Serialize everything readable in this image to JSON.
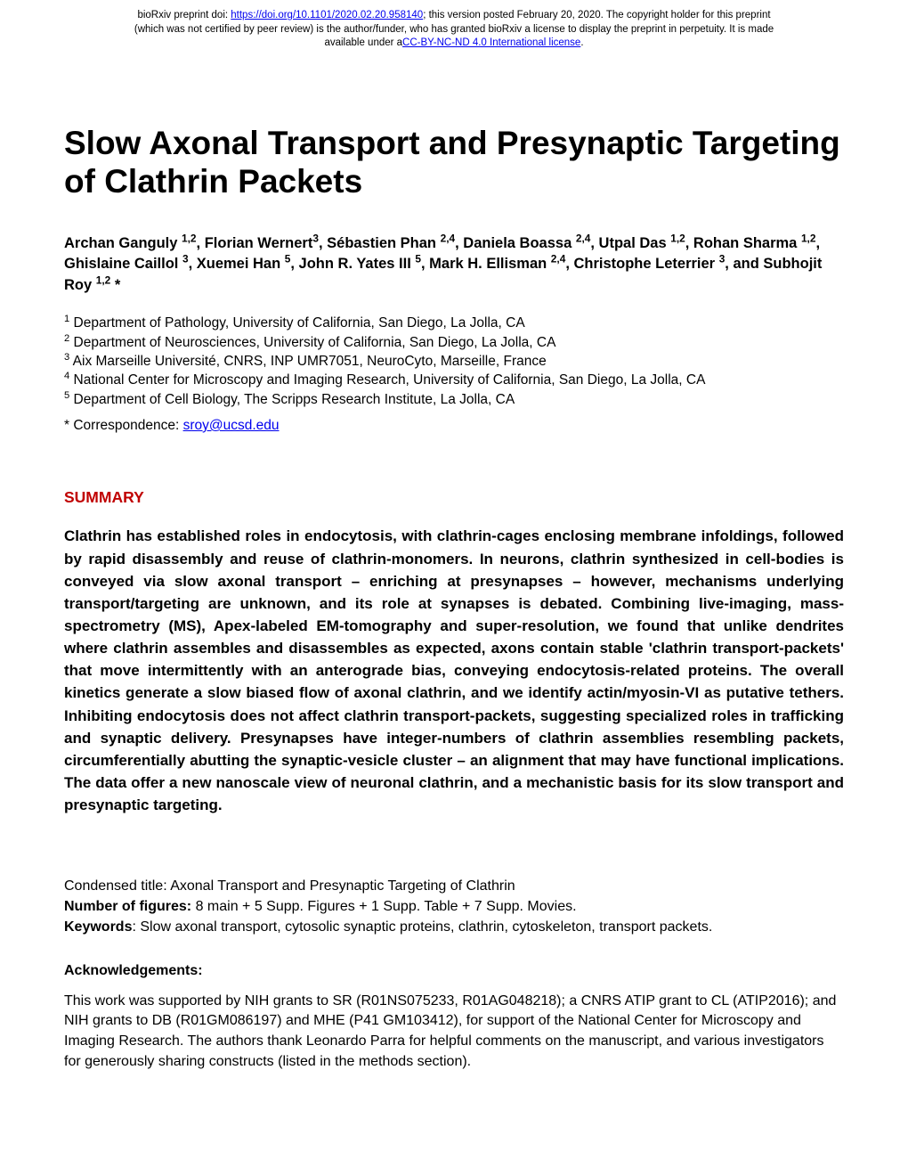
{
  "banner": {
    "line1_pre": "bioRxiv preprint doi: ",
    "doi_text": "https://doi.org/10.1101/2020.02.20.958140",
    "line1_post": "; this version posted February 20, 2020. The copyright holder for this preprint",
    "line2": "(which was not certified by peer review) is the author/funder, who has granted bioRxiv a license to display the preprint in perpetuity. It is made",
    "line3_pre": "available under a",
    "license_text": "CC-BY-NC-ND 4.0 International license",
    "line3_post": "."
  },
  "title": "Slow Axonal Transport and Presynaptic Targeting of Clathrin Packets",
  "authors_html_parts": [
    {
      "t": "Archan Ganguly ",
      "s": "1,2"
    },
    {
      "t": ", Florian Wernert",
      "s": "3"
    },
    {
      "t": ", Sébastien Phan ",
      "s": "2,4"
    },
    {
      "t": ", Daniela Boassa ",
      "s": "2,4"
    },
    {
      "t": ", Utpal Das ",
      "s": "1,2"
    },
    {
      "t": ", Rohan Sharma ",
      "s": "1,2"
    },
    {
      "t": ", Ghislaine Caillol ",
      "s": "3"
    },
    {
      "t": ", Xuemei Han ",
      "s": "5"
    },
    {
      "t": ", John R. Yates III ",
      "s": "5"
    },
    {
      "t": ", Mark H. Ellisman ",
      "s": "2,4"
    },
    {
      "t": ", Christophe Leterrier ",
      "s": "3"
    },
    {
      "t": ", and Subhojit Roy ",
      "s": "1,2",
      "post": " *"
    }
  ],
  "affiliations": [
    {
      "n": "1",
      "text": " Department of Pathology, University of California, San Diego, La Jolla, CA"
    },
    {
      "n": "2",
      "text": " Department of Neurosciences, University of California, San Diego, La Jolla, CA"
    },
    {
      "n": "3",
      "text": " Aix Marseille Université, CNRS, INP UMR7051, NeuroCyto, Marseille, France"
    },
    {
      "n": "4",
      "text": " National Center for Microscopy and Imaging Research, University of California, San Diego, La Jolla, CA"
    },
    {
      "n": "5",
      "text": " Department of Cell Biology, The Scripps Research Institute, La Jolla, CA"
    }
  ],
  "correspondence_label": "* Correspondence: ",
  "correspondence_email": "sroy@ucsd.edu",
  "summary_heading": "SUMMARY",
  "summary_body": "Clathrin has established roles in endocytosis, with clathrin-cages enclosing membrane infoldings, followed by rapid disassembly and reuse of clathrin-monomers. In neurons, clathrin synthesized in cell-bodies is conveyed via slow axonal transport – enriching at presynapses – however, mechanisms underlying transport/targeting are unknown, and its role at synapses is debated. Combining live-imaging, mass-spectrometry (MS), Apex-labeled EM-tomography and super-resolution, we found that unlike dendrites where clathrin assembles and disassembles as expected, axons contain stable 'clathrin transport-packets' that move intermittently with an anterograde bias, conveying endocytosis-related proteins. The overall kinetics generate a slow biased flow of axonal clathrin, and we identify actin/myosin-VI as putative tethers. Inhibiting endocytosis does not affect clathrin transport-packets, suggesting specialized roles in trafficking and synaptic delivery. Presynapses have integer-numbers of clathrin assemblies resembling packets, circumferentially abutting the synaptic-vesicle cluster – an alignment that may have functional implications. The data offer a new nanoscale view of neuronal clathrin, and a mechanistic basis for its slow transport and presynaptic targeting.",
  "meta": {
    "condensed_title_label": "Condensed title: ",
    "condensed_title_value": "Axonal Transport and Presynaptic Targeting of Clathrin",
    "figures_label": "Number of figures: ",
    "figures_value": "8 main + 5 Supp. Figures + 1 Supp. Table + 7 Supp. Movies.",
    "keywords_label": "Keywords",
    "keywords_value": ": Slow axonal transport, cytosolic synaptic proteins, clathrin, cytoskeleton, transport packets."
  },
  "ack_heading": "Acknowledgements:",
  "ack_body": "This work was supported by NIH grants to SR (R01NS075233, R01AG048218); a CNRS ATIP grant to CL (ATIP2016); and NIH grants to DB (R01GM086197) and MHE (P41 GM103412), for support of the National Center for Microscopy and Imaging Research. The authors thank Leonardo Parra for helpful comments on the manuscript, and various investigators for generously sharing constructs (listed in the methods section)."
}
